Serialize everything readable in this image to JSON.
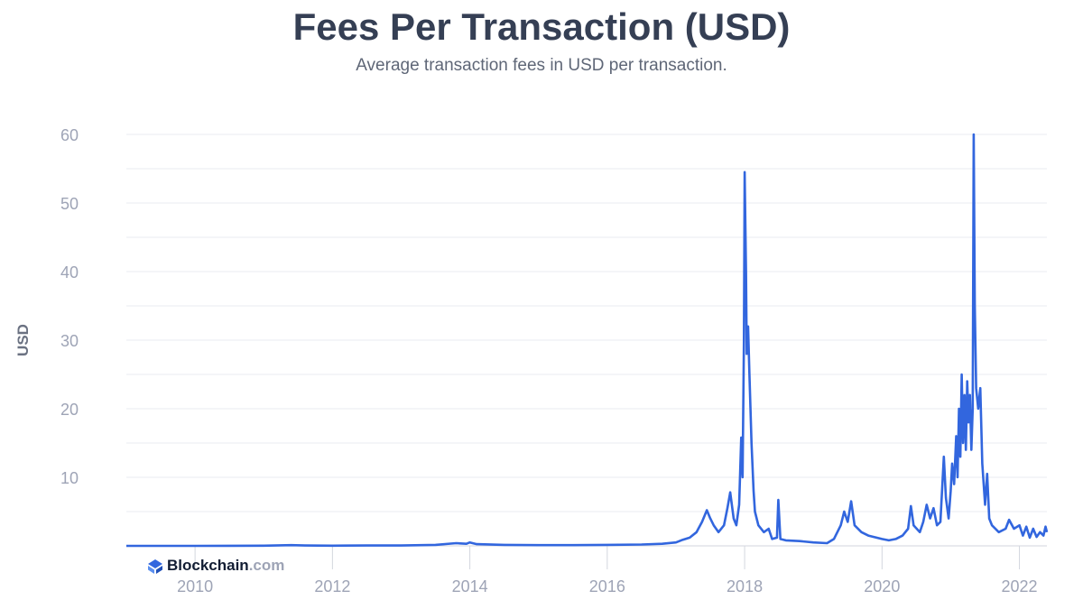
{
  "chart_data": {
    "type": "line",
    "title": "Fees Per Transaction (USD)",
    "subtitle": "Average transaction fees in USD per transaction.",
    "ylabel": "USD",
    "xlabel": "",
    "xlim": [
      2009.0,
      2022.4
    ],
    "ylim": [
      0,
      60
    ],
    "yticks": [
      10,
      20,
      30,
      40,
      50,
      60
    ],
    "xticks": [
      2010,
      2012,
      2014,
      2016,
      2018,
      2020,
      2022
    ],
    "grid": true,
    "legend": "none",
    "line_color": "#3266de",
    "series": [
      {
        "points": [
          [
            2009.0,
            0.0
          ],
          [
            2010.0,
            0.0
          ],
          [
            2011.0,
            0.02
          ],
          [
            2011.4,
            0.1
          ],
          [
            2011.6,
            0.05
          ],
          [
            2012.0,
            0.03
          ],
          [
            2012.5,
            0.05
          ],
          [
            2013.0,
            0.05
          ],
          [
            2013.5,
            0.15
          ],
          [
            2013.8,
            0.4
          ],
          [
            2013.95,
            0.3
          ],
          [
            2014.0,
            0.5
          ],
          [
            2014.1,
            0.25
          ],
          [
            2014.5,
            0.15
          ],
          [
            2015.0,
            0.1
          ],
          [
            2015.5,
            0.1
          ],
          [
            2016.0,
            0.15
          ],
          [
            2016.5,
            0.2
          ],
          [
            2016.8,
            0.3
          ],
          [
            2017.0,
            0.5
          ],
          [
            2017.1,
            0.9
          ],
          [
            2017.2,
            1.2
          ],
          [
            2017.3,
            2.0
          ],
          [
            2017.38,
            3.5
          ],
          [
            2017.45,
            5.2
          ],
          [
            2017.5,
            4.0
          ],
          [
            2017.55,
            3.0
          ],
          [
            2017.62,
            2.0
          ],
          [
            2017.7,
            3.0
          ],
          [
            2017.75,
            5.5
          ],
          [
            2017.79,
            7.8
          ],
          [
            2017.84,
            4.0
          ],
          [
            2017.88,
            3.0
          ],
          [
            2017.92,
            6.0
          ],
          [
            2017.95,
            15.8
          ],
          [
            2017.97,
            10.0
          ],
          [
            2017.99,
            30.0
          ],
          [
            2018.0,
            54.5
          ],
          [
            2018.02,
            40.0
          ],
          [
            2018.03,
            28.0
          ],
          [
            2018.05,
            32.0
          ],
          [
            2018.07,
            25.0
          ],
          [
            2018.1,
            15.0
          ],
          [
            2018.13,
            8.0
          ],
          [
            2018.15,
            5.0
          ],
          [
            2018.2,
            3.0
          ],
          [
            2018.28,
            2.0
          ],
          [
            2018.35,
            2.5
          ],
          [
            2018.4,
            1.0
          ],
          [
            2018.47,
            1.2
          ],
          [
            2018.49,
            6.7
          ],
          [
            2018.52,
            1.0
          ],
          [
            2018.6,
            0.8
          ],
          [
            2018.8,
            0.7
          ],
          [
            2019.0,
            0.5
          ],
          [
            2019.2,
            0.4
          ],
          [
            2019.3,
            1.0
          ],
          [
            2019.4,
            3.0
          ],
          [
            2019.45,
            5.0
          ],
          [
            2019.5,
            3.5
          ],
          [
            2019.55,
            6.5
          ],
          [
            2019.6,
            3.0
          ],
          [
            2019.7,
            2.0
          ],
          [
            2019.8,
            1.5
          ],
          [
            2020.0,
            1.0
          ],
          [
            2020.1,
            0.8
          ],
          [
            2020.2,
            1.0
          ],
          [
            2020.3,
            1.5
          ],
          [
            2020.38,
            2.5
          ],
          [
            2020.42,
            5.8
          ],
          [
            2020.46,
            3.0
          ],
          [
            2020.55,
            2.0
          ],
          [
            2020.6,
            3.5
          ],
          [
            2020.65,
            6.0
          ],
          [
            2020.7,
            4.0
          ],
          [
            2020.75,
            5.5
          ],
          [
            2020.8,
            3.0
          ],
          [
            2020.85,
            3.5
          ],
          [
            2020.9,
            13.0
          ],
          [
            2020.93,
            7.0
          ],
          [
            2020.97,
            4.0
          ],
          [
            2021.0,
            8.0
          ],
          [
            2021.02,
            12.0
          ],
          [
            2021.05,
            9.0
          ],
          [
            2021.08,
            16.0
          ],
          [
            2021.1,
            10.0
          ],
          [
            2021.12,
            20.0
          ],
          [
            2021.14,
            13.0
          ],
          [
            2021.16,
            25.0
          ],
          [
            2021.18,
            15.0
          ],
          [
            2021.2,
            22.0
          ],
          [
            2021.22,
            14.0
          ],
          [
            2021.24,
            24.0
          ],
          [
            2021.26,
            18.0
          ],
          [
            2021.28,
            22.0
          ],
          [
            2021.3,
            14.0
          ],
          [
            2021.32,
            20.0
          ],
          [
            2021.335,
            60.0
          ],
          [
            2021.35,
            35.0
          ],
          [
            2021.37,
            23.0
          ],
          [
            2021.4,
            20.0
          ],
          [
            2021.43,
            23.0
          ],
          [
            2021.46,
            12.0
          ],
          [
            2021.5,
            6.0
          ],
          [
            2021.53,
            10.5
          ],
          [
            2021.56,
            4.0
          ],
          [
            2021.6,
            3.0
          ],
          [
            2021.7,
            2.0
          ],
          [
            2021.8,
            2.5
          ],
          [
            2021.85,
            3.8
          ],
          [
            2021.92,
            2.5
          ],
          [
            2022.0,
            3.0
          ],
          [
            2022.05,
            1.5
          ],
          [
            2022.1,
            2.8
          ],
          [
            2022.15,
            1.2
          ],
          [
            2022.2,
            2.5
          ],
          [
            2022.25,
            1.3
          ],
          [
            2022.3,
            2.0
          ],
          [
            2022.35,
            1.5
          ],
          [
            2022.38,
            2.8
          ],
          [
            2022.4,
            2.0
          ]
        ]
      }
    ]
  },
  "branding": {
    "name": "Blockchain",
    "suffix": ".com",
    "logo_icon": "blockchain-diamond-icon",
    "logo_color": "#3266de"
  }
}
